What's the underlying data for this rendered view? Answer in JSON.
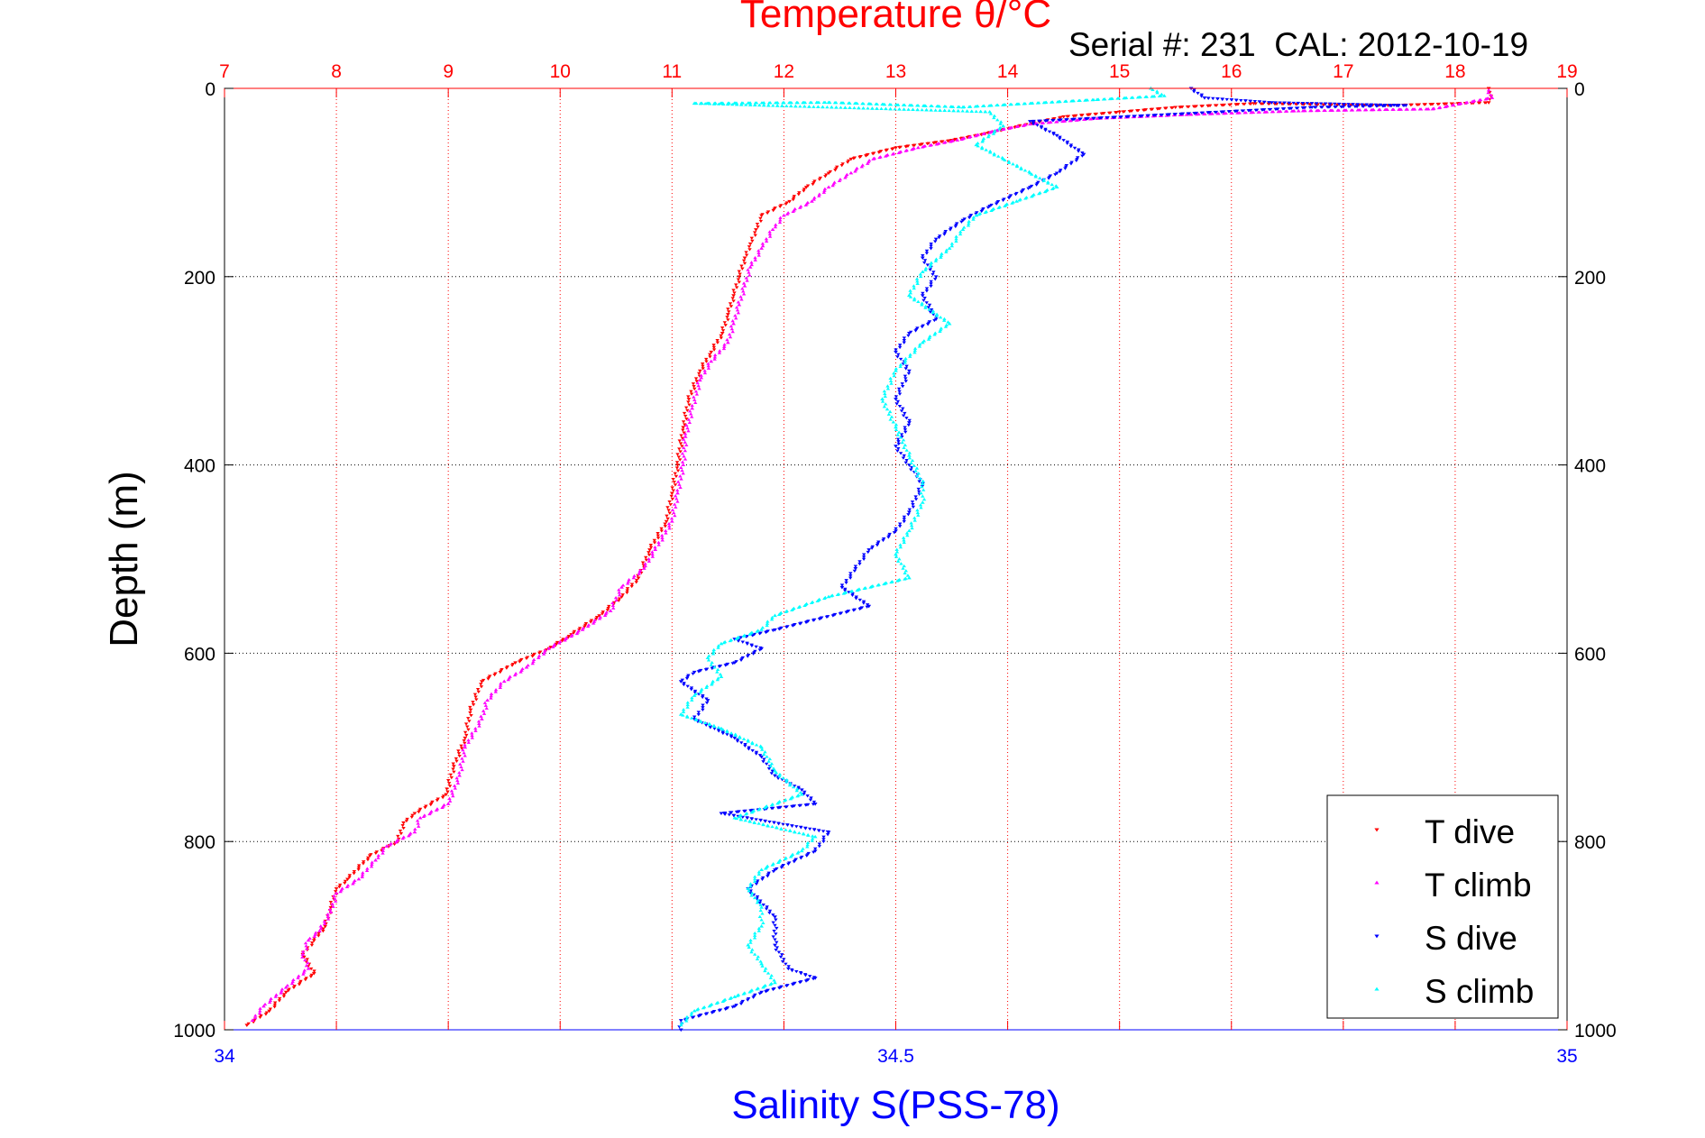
{
  "chart_data": {
    "type": "scatter",
    "title": "Temperature θ/°C",
    "subtitle": "Serial #: 231  CAL: 2012-10-19",
    "xlabel": "Salinity S(PSS-78)",
    "ylabel": "Depth (m)",
    "x_top": {
      "label": "Temperature θ/°C",
      "lim": [
        7,
        19
      ],
      "ticks": [
        "7",
        "8",
        "9",
        "10",
        "11",
        "12",
        "13",
        "14",
        "15",
        "16",
        "17",
        "18",
        "19"
      ],
      "color": "#ff0000"
    },
    "x_bottom": {
      "label": "Salinity S(PSS-78)",
      "lim": [
        34,
        35
      ],
      "ticks": [
        "34",
        "34.5",
        "35"
      ],
      "color": "#0000ff"
    },
    "y": {
      "label": "Depth (m)",
      "lim": [
        0,
        1000
      ],
      "reversed": true,
      "ticks": [
        "0",
        "200",
        "400",
        "600",
        "800",
        "1000"
      ]
    },
    "grid": true,
    "legend_placement": "bottom-right",
    "series": [
      {
        "name": "T dive",
        "axis": "temperature",
        "color": "#ff0000",
        "marker": "triangle-down",
        "points": [
          [
            18.3,
            0
          ],
          [
            18.32,
            8
          ],
          [
            18.3,
            15
          ],
          [
            17.4,
            18
          ],
          [
            16.2,
            16
          ],
          [
            15.5,
            20
          ],
          [
            15.0,
            25
          ],
          [
            14.5,
            30
          ],
          [
            14.1,
            40
          ],
          [
            13.8,
            48
          ],
          [
            13.5,
            55
          ],
          [
            13.0,
            63
          ],
          [
            12.6,
            75
          ],
          [
            12.4,
            90
          ],
          [
            12.2,
            105
          ],
          [
            12.05,
            120
          ],
          [
            11.8,
            135
          ],
          [
            11.75,
            150
          ],
          [
            11.7,
            165
          ],
          [
            11.65,
            180
          ],
          [
            11.6,
            200
          ],
          [
            11.55,
            220
          ],
          [
            11.5,
            240
          ],
          [
            11.45,
            260
          ],
          [
            11.35,
            280
          ],
          [
            11.25,
            300
          ],
          [
            11.15,
            330
          ],
          [
            11.1,
            360
          ],
          [
            11.05,
            400
          ],
          [
            11.0,
            430
          ],
          [
            10.95,
            460
          ],
          [
            10.8,
            490
          ],
          [
            10.7,
            520
          ],
          [
            10.55,
            540
          ],
          [
            10.35,
            560
          ],
          [
            10.1,
            580
          ],
          [
            9.9,
            595
          ],
          [
            9.6,
            610
          ],
          [
            9.3,
            630
          ],
          [
            9.2,
            660
          ],
          [
            9.15,
            690
          ],
          [
            9.05,
            720
          ],
          [
            8.98,
            750
          ],
          [
            8.7,
            770
          ],
          [
            8.6,
            780
          ],
          [
            8.55,
            800
          ],
          [
            8.3,
            815
          ],
          [
            8.1,
            840
          ],
          [
            8.0,
            850
          ],
          [
            7.95,
            870
          ],
          [
            7.9,
            890
          ],
          [
            7.8,
            905
          ],
          [
            7.7,
            920
          ],
          [
            7.8,
            940
          ],
          [
            7.55,
            960
          ],
          [
            7.4,
            980
          ],
          [
            7.2,
            995
          ]
        ]
      },
      {
        "name": "T climb",
        "axis": "temperature",
        "color": "#ff00ff",
        "marker": "triangle-up",
        "points": [
          [
            18.3,
            2
          ],
          [
            18.33,
            10
          ],
          [
            17.8,
            22
          ],
          [
            16.6,
            24
          ],
          [
            15.6,
            28
          ],
          [
            14.8,
            32
          ],
          [
            14.2,
            38
          ],
          [
            13.9,
            45
          ],
          [
            13.55,
            55
          ],
          [
            13.2,
            63
          ],
          [
            12.8,
            75
          ],
          [
            12.6,
            90
          ],
          [
            12.4,
            105
          ],
          [
            12.25,
            120
          ],
          [
            12.0,
            135
          ],
          [
            11.9,
            150
          ],
          [
            11.8,
            170
          ],
          [
            11.7,
            190
          ],
          [
            11.65,
            210
          ],
          [
            11.6,
            230
          ],
          [
            11.55,
            250
          ],
          [
            11.5,
            270
          ],
          [
            11.35,
            290
          ],
          [
            11.25,
            310
          ],
          [
            11.18,
            340
          ],
          [
            11.12,
            370
          ],
          [
            11.1,
            400
          ],
          [
            11.05,
            430
          ],
          [
            11.0,
            460
          ],
          [
            10.85,
            490
          ],
          [
            10.75,
            510
          ],
          [
            10.55,
            530
          ],
          [
            10.45,
            555
          ],
          [
            10.2,
            575
          ],
          [
            9.9,
            595
          ],
          [
            9.7,
            615
          ],
          [
            9.5,
            630
          ],
          [
            9.35,
            650
          ],
          [
            9.3,
            670
          ],
          [
            9.15,
            700
          ],
          [
            9.1,
            730
          ],
          [
            9.0,
            760
          ],
          [
            8.75,
            775
          ],
          [
            8.7,
            790
          ],
          [
            8.45,
            805
          ],
          [
            8.35,
            820
          ],
          [
            8.2,
            840
          ],
          [
            8.0,
            855
          ],
          [
            7.95,
            875
          ],
          [
            7.85,
            895
          ],
          [
            7.75,
            905
          ],
          [
            7.7,
            920
          ],
          [
            7.75,
            935
          ],
          [
            7.55,
            955
          ],
          [
            7.35,
            975
          ],
          [
            7.25,
            990
          ]
        ]
      },
      {
        "name": "S dive",
        "axis": "salinity",
        "color": "#0000ff",
        "marker": "triangle-down",
        "points": [
          [
            34.72,
            0
          ],
          [
            34.73,
            10
          ],
          [
            34.78,
            15
          ],
          [
            34.88,
            18
          ],
          [
            34.81,
            20
          ],
          [
            34.6,
            35
          ],
          [
            34.62,
            50
          ],
          [
            34.64,
            70
          ],
          [
            34.62,
            90
          ],
          [
            34.6,
            105
          ],
          [
            34.57,
            125
          ],
          [
            34.55,
            140
          ],
          [
            34.53,
            160
          ],
          [
            34.52,
            180
          ],
          [
            34.53,
            200
          ],
          [
            34.52,
            220
          ],
          [
            34.53,
            245
          ],
          [
            34.51,
            260
          ],
          [
            34.5,
            280
          ],
          [
            34.51,
            300
          ],
          [
            34.5,
            330
          ],
          [
            34.51,
            355
          ],
          [
            34.5,
            380
          ],
          [
            34.51,
            400
          ],
          [
            34.52,
            420
          ],
          [
            34.51,
            450
          ],
          [
            34.5,
            470
          ],
          [
            34.48,
            490
          ],
          [
            34.47,
            510
          ],
          [
            34.46,
            530
          ],
          [
            34.48,
            550
          ],
          [
            34.41,
            575
          ],
          [
            34.38,
            585
          ],
          [
            34.4,
            595
          ],
          [
            34.38,
            610
          ],
          [
            34.35,
            620
          ],
          [
            34.34,
            630
          ],
          [
            34.36,
            650
          ],
          [
            34.35,
            670
          ],
          [
            34.38,
            690
          ],
          [
            34.4,
            710
          ],
          [
            34.41,
            730
          ],
          [
            34.43,
            745
          ],
          [
            34.44,
            760
          ],
          [
            34.37,
            770
          ],
          [
            34.45,
            790
          ],
          [
            34.44,
            810
          ],
          [
            34.41,
            830
          ],
          [
            34.39,
            850
          ],
          [
            34.41,
            880
          ],
          [
            34.41,
            910
          ],
          [
            34.42,
            935
          ],
          [
            34.44,
            945
          ],
          [
            34.4,
            960
          ],
          [
            34.38,
            975
          ],
          [
            34.34,
            990
          ],
          [
            34.34,
            1000
          ]
        ]
      },
      {
        "name": "S climb",
        "axis": "salinity",
        "color": "#00ffff",
        "marker": "triangle-up",
        "points": [
          [
            34.69,
            0
          ],
          [
            34.7,
            8
          ],
          [
            34.65,
            12
          ],
          [
            34.55,
            20
          ],
          [
            34.45,
            15
          ],
          [
            34.35,
            16
          ],
          [
            34.57,
            25
          ],
          [
            34.58,
            40
          ],
          [
            34.56,
            60
          ],
          [
            34.58,
            75
          ],
          [
            34.6,
            90
          ],
          [
            34.62,
            105
          ],
          [
            34.59,
            120
          ],
          [
            34.56,
            135
          ],
          [
            34.55,
            150
          ],
          [
            34.54,
            170
          ],
          [
            34.52,
            195
          ],
          [
            34.51,
            220
          ],
          [
            34.54,
            250
          ],
          [
            34.52,
            270
          ],
          [
            34.5,
            300
          ],
          [
            34.49,
            330
          ],
          [
            34.5,
            360
          ],
          [
            34.51,
            390
          ],
          [
            34.52,
            420
          ],
          [
            34.52,
            440
          ],
          [
            34.51,
            470
          ],
          [
            34.5,
            495
          ],
          [
            34.51,
            520
          ],
          [
            34.45,
            540
          ],
          [
            34.41,
            560
          ],
          [
            34.4,
            575
          ],
          [
            34.37,
            590
          ],
          [
            34.36,
            605
          ],
          [
            34.37,
            625
          ],
          [
            34.35,
            645
          ],
          [
            34.34,
            665
          ],
          [
            34.37,
            680
          ],
          [
            34.4,
            700
          ],
          [
            34.41,
            725
          ],
          [
            34.43,
            750
          ],
          [
            34.38,
            775
          ],
          [
            34.44,
            795
          ],
          [
            34.43,
            810
          ],
          [
            34.4,
            830
          ],
          [
            34.39,
            850
          ],
          [
            34.4,
            870
          ],
          [
            34.4,
            890
          ],
          [
            34.39,
            910
          ],
          [
            34.4,
            930
          ],
          [
            34.41,
            950
          ],
          [
            34.38,
            965
          ],
          [
            34.35,
            980
          ],
          [
            34.34,
            995
          ]
        ]
      }
    ],
    "legend": {
      "entries": [
        {
          "name": "T dive",
          "color": "#ff0000",
          "marker": "triangle-down"
        },
        {
          "name": "T climb",
          "color": "#ff00ff",
          "marker": "triangle-up"
        },
        {
          "name": "S dive",
          "color": "#0000ff",
          "marker": "triangle-down"
        },
        {
          "name": "S climb",
          "color": "#00ffff",
          "marker": "triangle-up"
        }
      ]
    }
  }
}
